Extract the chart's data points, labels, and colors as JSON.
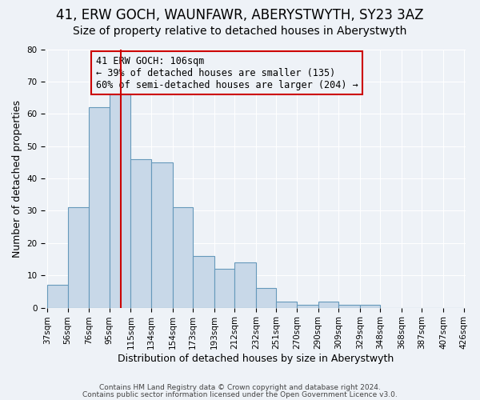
{
  "title": "41, ERW GOCH, WAUNFAWR, ABERYSTWYTH, SY23 3AZ",
  "subtitle": "Size of property relative to detached houses in Aberystwyth",
  "xlabel": "Distribution of detached houses by size in Aberystwyth",
  "ylabel": "Number of detached properties",
  "bar_values": [
    7,
    31,
    62,
    66,
    46,
    45,
    31,
    16,
    12,
    14,
    6,
    2,
    1,
    2,
    1,
    1,
    0,
    0,
    0,
    0
  ],
  "bin_edges": [
    37,
    56,
    76,
    95,
    115,
    134,
    154,
    173,
    193,
    212,
    232,
    251,
    270,
    290,
    309,
    329,
    348,
    368,
    387,
    407,
    426
  ],
  "tick_labels": [
    "37sqm",
    "56sqm",
    "76sqm",
    "95sqm",
    "115sqm",
    "134sqm",
    "154sqm",
    "173sqm",
    "193sqm",
    "212sqm",
    "232sqm",
    "251sqm",
    "270sqm",
    "290sqm",
    "309sqm",
    "329sqm",
    "348sqm",
    "368sqm",
    "387sqm",
    "407sqm",
    "426sqm"
  ],
  "bar_color": "#c8d8e8",
  "bar_edge_color": "#6699bb",
  "vline_x": 106,
  "vline_color": "#cc0000",
  "annotation_title": "41 ERW GOCH: 106sqm",
  "annotation_line2": "← 39% of detached houses are smaller (135)",
  "annotation_line3": "60% of semi-detached houses are larger (204) →",
  "annotation_box_color": "#cc0000",
  "ylim": [
    0,
    80
  ],
  "yticks": [
    0,
    10,
    20,
    30,
    40,
    50,
    60,
    70,
    80
  ],
  "footer1": "Contains HM Land Registry data © Crown copyright and database right 2024.",
  "footer2": "Contains public sector information licensed under the Open Government Licence v3.0.",
  "background_color": "#eef2f7",
  "grid_color": "#ffffff",
  "title_fontsize": 12,
  "subtitle_fontsize": 10,
  "axis_label_fontsize": 9,
  "tick_fontsize": 7.5,
  "annotation_fontsize": 8.5,
  "footer_fontsize": 6.5
}
